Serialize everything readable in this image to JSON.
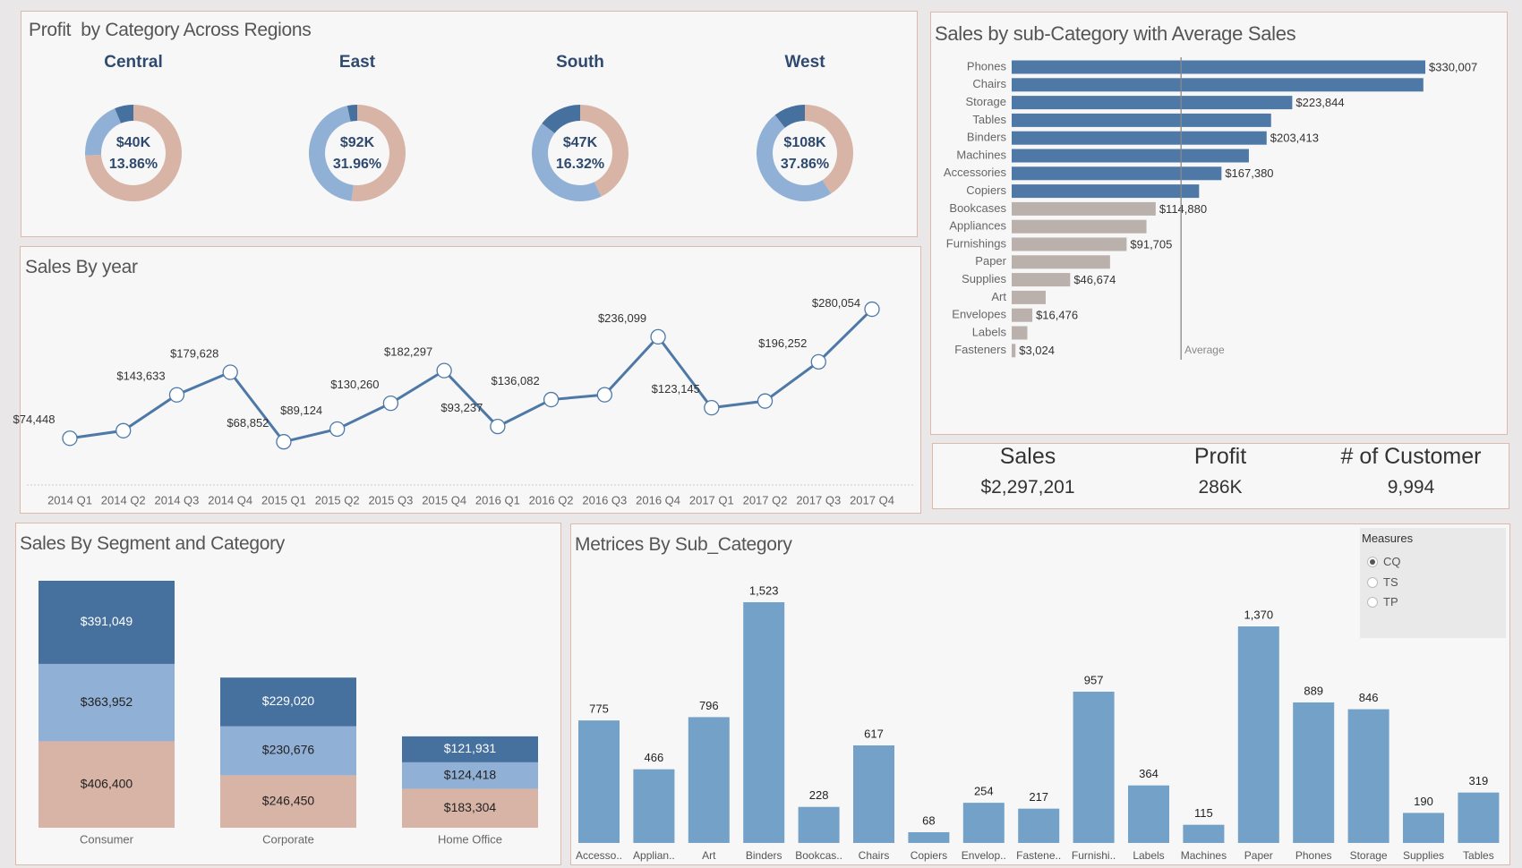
{
  "kpis": [
    {
      "label": "Sales",
      "value": "$2,297,201"
    },
    {
      "label": "Profit",
      "value": "286K"
    },
    {
      "label": "# of Customer",
      "value": "9,994"
    }
  ],
  "measures_control": {
    "title": "Measures",
    "options": [
      "CQ",
      "TS",
      "TP"
    ],
    "selected": "CQ"
  },
  "colors": {
    "tan": "#d8b4a6",
    "light_blue": "#91b0d6",
    "dark_blue": "#46709e",
    "bar_blue": "#4e79a7",
    "bar_grey": "#bab0ac",
    "metric_blue": "#73a1c8",
    "line_blue": "#4e79a7"
  },
  "chart_data": [
    {
      "type": "pie",
      "title": "Profit  by Category Across Regions",
      "regions": [
        {
          "name": "Central",
          "total": "$40K",
          "pct": "13.86%",
          "shares": [
            0.741,
            0.195,
            0.063
          ]
        },
        {
          "name": "East",
          "total": "$92K",
          "pct": "31.96%",
          "shares": [
            0.519,
            0.448,
            0.033
          ]
        },
        {
          "name": "South",
          "total": "$47K",
          "pct": "16.32%",
          "shares": [
            0.428,
            0.427,
            0.145
          ]
        },
        {
          "name": "West",
          "total": "$108K",
          "pct": "37.86%",
          "shares": [
            0.409,
            0.485,
            0.106
          ]
        }
      ]
    },
    {
      "type": "line",
      "title": "Sales By year",
      "categories": [
        "2014 Q1",
        "2014 Q2",
        "2014 Q3",
        "2014 Q4",
        "2015 Q1",
        "2015 Q2",
        "2015 Q3",
        "2015 Q4",
        "2016 Q1",
        "2016 Q2",
        "2016 Q3",
        "2016 Q4",
        "2017 Q1",
        "2017 Q2",
        "2017 Q3",
        "2017 Q4"
      ],
      "values": [
        74448,
        86539,
        143633,
        179628,
        68852,
        89124,
        130260,
        182297,
        93237,
        136082,
        143788,
        236099,
        123145,
        133764,
        196252,
        280054
      ],
      "data_labels": [
        "$74,448",
        null,
        "$143,633",
        "$179,628",
        "$68,852",
        "$89,124",
        "$130,260",
        "$182,297",
        "$93,237",
        "$136,082",
        null,
        "$236,099",
        "$123,145",
        null,
        "$196,252",
        "$280,054"
      ],
      "ylim": [
        0,
        345000
      ],
      "grid": false
    },
    {
      "type": "bar",
      "orientation": "horizontal",
      "title": "Sales by sub-Category with Average Sales",
      "categories": [
        "Phones",
        "Chairs",
        "Storage",
        "Tables",
        "Binders",
        "Machines",
        "Accessories",
        "Copiers",
        "Bookcases",
        "Appliances",
        "Furnishings",
        "Paper",
        "Supplies",
        "Art",
        "Envelopes",
        "Labels",
        "Fasteners"
      ],
      "values": [
        330007,
        328449,
        223844,
        206966,
        203413,
        189239,
        167380,
        149528,
        114880,
        107532,
        91705,
        78479,
        46674,
        27119,
        16476,
        12486,
        3024
      ],
      "data_labels": [
        "$330,007",
        null,
        "$223,844",
        null,
        "$203,413",
        null,
        "$167,380",
        null,
        "$114,880",
        null,
        "$91,705",
        null,
        "$46,674",
        null,
        "$16,476",
        null,
        "$3,024"
      ],
      "reference_line": {
        "label": "Average",
        "value": 135129
      },
      "xlim": [
        0,
        330007
      ]
    },
    {
      "type": "bar",
      "stacked": true,
      "title": "Sales By Segment and Category",
      "categories": [
        "Consumer",
        "Corporate",
        "Home Office"
      ],
      "series": [
        {
          "color": "#d8b4a6",
          "values": [
            406400,
            246450,
            183304
          ],
          "labels": [
            "$406,400",
            "$246,450",
            "$183,304"
          ]
        },
        {
          "color": "#91b0d6",
          "values": [
            363952,
            230676,
            124418
          ],
          "labels": [
            "$363,952",
            "$230,676",
            "$124,418"
          ]
        },
        {
          "color": "#46709e",
          "values": [
            391049,
            229020,
            121931
          ],
          "labels": [
            "$391,049",
            "$229,020",
            "$121,931"
          ]
        }
      ]
    },
    {
      "type": "bar",
      "title": "Metrices By Sub_Category",
      "categories": [
        "Accesso..",
        "Applian..",
        "Art",
        "Binders",
        "Bookcas..",
        "Chairs",
        "Copiers",
        "Envelop..",
        "Fastene..",
        "Furnishi..",
        "Labels",
        "Machines",
        "Paper",
        "Phones",
        "Storage",
        "Supplies",
        "Tables"
      ],
      "values": [
        775,
        466,
        796,
        1523,
        228,
        617,
        68,
        254,
        217,
        957,
        364,
        115,
        1370,
        889,
        846,
        190,
        319
      ],
      "data_labels": [
        "775",
        "466",
        "796",
        "1,523",
        "228",
        "617",
        "68",
        "254",
        "217",
        "957",
        "364",
        "115",
        "1,370",
        "889",
        "846",
        "190",
        "319"
      ],
      "ylim": [
        0,
        1523
      ]
    }
  ]
}
